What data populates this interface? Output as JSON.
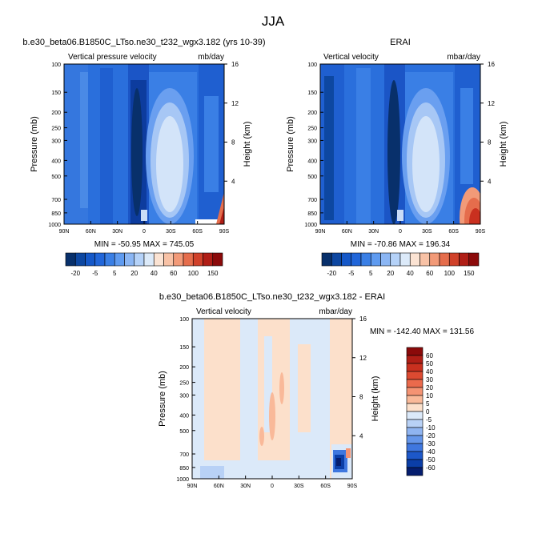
{
  "figure": {
    "title": "JJA"
  },
  "chart_data": [
    {
      "type": "heatmap",
      "title": "b.e30_beta06.B1850C_LTso.ne30_t232_wgx3.182 (yrs 10-39)",
      "left_label": "Vertical pressure velocity",
      "units": "mb/day",
      "ylabel": "Pressure (mb)",
      "right_ylabel": "Height (km)",
      "x_ticks": [
        "90N",
        "60N",
        "30N",
        "0",
        "30S",
        "60S",
        "90S"
      ],
      "y_ticks": [
        "100",
        "150",
        "200",
        "250",
        "300",
        "400",
        "500",
        "700",
        "850",
        "1000"
      ],
      "height_ticks": [
        "16",
        "12",
        "8",
        "4"
      ],
      "stats": "MIN = -50.95   MAX = 745.05",
      "colorbar_labels": [
        "-20",
        "-5",
        "5",
        "20",
        "40",
        "60",
        "100",
        "150"
      ]
    },
    {
      "type": "heatmap",
      "title": "ERAI",
      "left_label": "Vertical velocity",
      "units": "mbar/day",
      "ylabel": "Pressure (mb)",
      "right_ylabel": "Height (km)",
      "x_ticks": [
        "90N",
        "60N",
        "30N",
        "0",
        "30S",
        "60S",
        "90S"
      ],
      "y_ticks": [
        "100",
        "150",
        "200",
        "250",
        "300",
        "400",
        "500",
        "700",
        "850",
        "1000"
      ],
      "height_ticks": [
        "16",
        "12",
        "8",
        "4"
      ],
      "stats": "MIN = -70.86   MAX = 196.34",
      "colorbar_labels": [
        "-20",
        "-5",
        "5",
        "20",
        "40",
        "60",
        "100",
        "150"
      ]
    },
    {
      "type": "heatmap",
      "title": "b.e30_beta06.B1850C_LTso.ne30_t232_wgx3.182 - ERAI",
      "left_label": "Vertical velocity",
      "units": "mbar/day",
      "ylabel": "Pressure (mb)",
      "right_ylabel": "Height (km)",
      "x_ticks": [
        "90N",
        "60N",
        "30N",
        "0",
        "30S",
        "60S",
        "90S"
      ],
      "y_ticks": [
        "100",
        "150",
        "200",
        "250",
        "300",
        "400",
        "500",
        "700",
        "850",
        "1000"
      ],
      "height_ticks": [
        "16",
        "12",
        "8",
        "4"
      ],
      "stats": "MIN = -142.40   MAX = 131.56",
      "colorbar_labels": [
        "60",
        "50",
        "40",
        "30",
        "20",
        "10",
        "5",
        "0",
        "-5",
        "-10",
        "-20",
        "-30",
        "-40",
        "-50",
        "-60"
      ]
    }
  ],
  "colors": {
    "abs_scale": [
      "#08306b",
      "#0d47a1",
      "#1558c8",
      "#2166d9",
      "#3a7fe5",
      "#5f9bf0",
      "#8bb6f4",
      "#b5d2f8",
      "#dceaf9",
      "#fbe3d3",
      "#f8c2a6",
      "#f29a78",
      "#e56d4c",
      "#d0412a",
      "#b01e16",
      "#8b0a0a"
    ],
    "diff_scale": [
      "#8b0a0a",
      "#b01e16",
      "#c9301f",
      "#dc4a31",
      "#ea6a4c",
      "#f49373",
      "#f9b999",
      "#fce0cb",
      "#dbe9f9",
      "#b8d1f6",
      "#8fb4f1",
      "#6596ea",
      "#3f77df",
      "#1d58c9",
      "#0b3ea7",
      "#051d6e"
    ],
    "frame": "#000000"
  }
}
